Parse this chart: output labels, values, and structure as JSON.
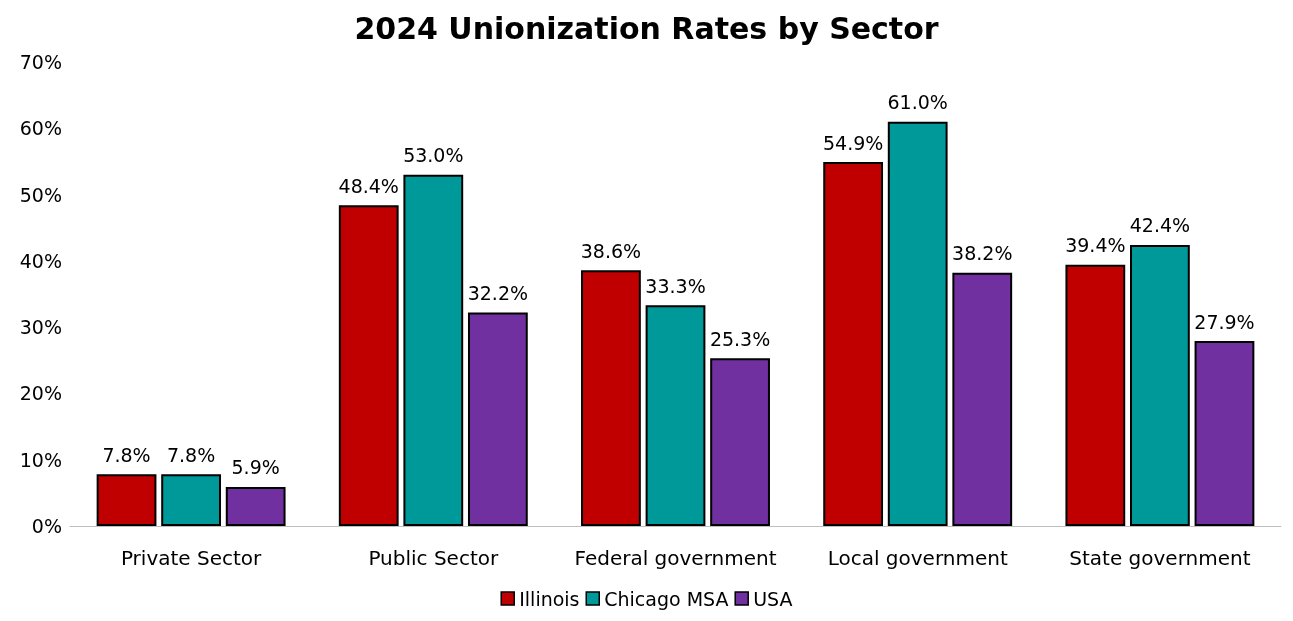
{
  "chart_data": {
    "type": "bar",
    "title": "2024 Unionization Rates by Sector",
    "categories": [
      "Private Sector",
      "Public Sector",
      "Federal government",
      "Local government",
      "State government"
    ],
    "series": [
      {
        "name": "Illinois",
        "color": "#c00000",
        "values": [
          7.8,
          48.4,
          38.6,
          54.9,
          39.4
        ],
        "value_labels": [
          "7.8%",
          "48.4%",
          "38.6%",
          "54.9%",
          "39.4%"
        ]
      },
      {
        "name": "Chicago MSA",
        "color": "#009999",
        "values": [
          7.8,
          53.0,
          33.3,
          61.0,
          42.4
        ],
        "value_labels": [
          "7.8%",
          "53.0%",
          "33.3%",
          "61.0%",
          "42.4%"
        ]
      },
      {
        "name": "USA",
        "color": "#7030a0",
        "values": [
          5.9,
          32.2,
          25.3,
          38.2,
          27.9
        ],
        "value_labels": [
          "5.9%",
          "32.2%",
          "25.3%",
          "38.2%",
          "27.9%"
        ]
      }
    ],
    "ylim": [
      0,
      70
    ],
    "yticks": [
      {
        "value": 0,
        "label": "0%"
      },
      {
        "value": 10,
        "label": "10%"
      },
      {
        "value": 20,
        "label": "20%"
      },
      {
        "value": 30,
        "label": "30%"
      },
      {
        "value": 40,
        "label": "40%"
      },
      {
        "value": 50,
        "label": "50%"
      },
      {
        "value": 60,
        "label": "60%"
      },
      {
        "value": 70,
        "label": "70%"
      }
    ],
    "grid": false,
    "legend": "bottom"
  }
}
